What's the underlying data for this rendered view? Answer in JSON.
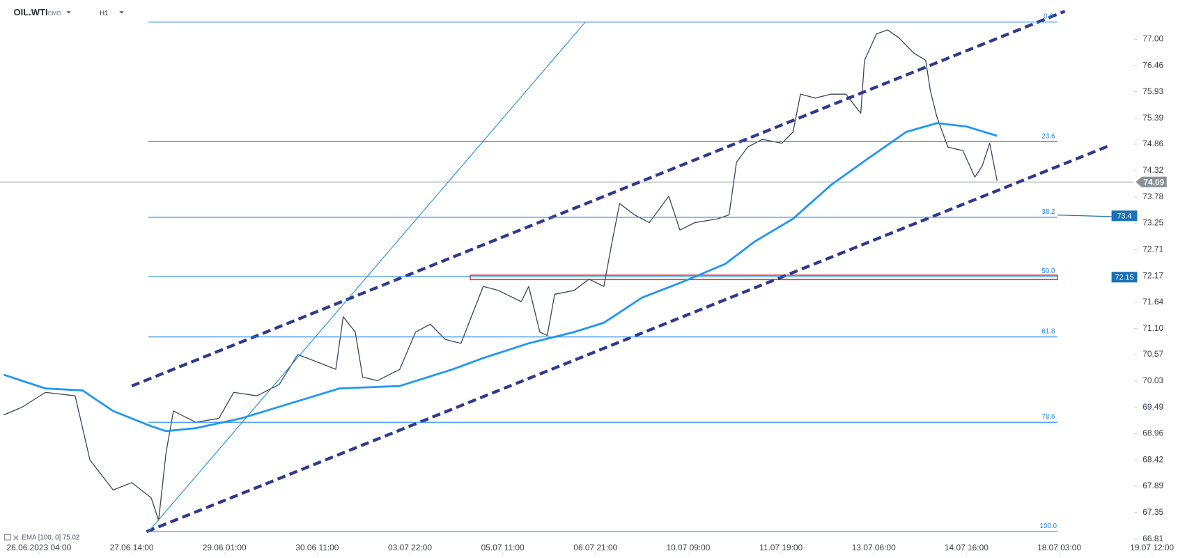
{
  "chart_data": {
    "type": "line",
    "symbol": "OIL.WTI",
    "market": "CMD",
    "timeframe": "H1",
    "indicator_label": "EMA [100, 0] 75.02",
    "xlim": [
      -0.42,
      12.28
    ],
    "ylim": [
      66.5,
      77.8
    ],
    "xticks": [
      {
        "value": 0,
        "label": "26.06.2023 04:00"
      },
      {
        "value": 1,
        "label": "27.06 14:00"
      },
      {
        "value": 2,
        "label": "29.06 01:00"
      },
      {
        "value": 3,
        "label": "30.06 11:00"
      },
      {
        "value": 4,
        "label": "03.07 22:00"
      },
      {
        "value": 5,
        "label": "05.07 11:00"
      },
      {
        "value": 6,
        "label": "06.07 21:00"
      },
      {
        "value": 7,
        "label": "10.07 09:00"
      },
      {
        "value": 8,
        "label": "11.07 19:00"
      },
      {
        "value": 9,
        "label": "13.07 06:00"
      },
      {
        "value": 10,
        "label": "14.07 16:00"
      },
      {
        "value": 11,
        "label": "18.07 03:00"
      },
      {
        "value": 12,
        "label": "19.07 12:00"
      }
    ],
    "yticks": [
      {
        "value": 77,
        "label": "77.00"
      },
      76.46,
      75.93,
      75.39,
      74.86,
      74.32,
      73.78,
      73.25,
      72.71,
      72.17,
      71.64,
      {
        "value": 71.1,
        "label": "71.10"
      },
      70.57,
      70.03,
      69.49,
      68.96,
      68.42,
      67.89,
      67.35,
      66.81
    ],
    "series": [
      {
        "name": "OIL.WTI",
        "color": "#3b4654",
        "x": [
          -0.38,
          -0.18,
          0.07,
          0.39,
          0.55,
          0.8,
          1.0,
          1.21,
          1.29,
          1.37,
          1.45,
          1.69,
          1.94,
          2.1,
          2.35,
          2.59,
          2.79,
          3.0,
          3.2,
          3.28,
          3.41,
          3.49,
          3.65,
          3.89,
          4.06,
          4.22,
          4.38,
          4.55,
          4.63,
          4.79,
          4.95,
          5.2,
          5.28,
          5.4,
          5.48,
          5.56,
          5.77,
          5.93,
          6.09,
          6.18,
          6.26,
          6.42,
          6.58,
          6.79,
          6.91,
          7.07,
          7.32,
          7.44,
          7.52,
          7.64,
          7.8,
          8.01,
          8.13,
          8.21,
          8.37,
          8.54,
          8.7,
          8.86,
          8.9,
          9.03,
          9.15,
          9.27,
          9.43,
          9.56,
          9.61,
          9.68,
          9.8,
          9.96,
          10.09,
          10.17,
          10.25,
          10.33
        ],
        "values": [
          69.34,
          69.5,
          69.8,
          69.73,
          68.42,
          67.81,
          67.96,
          67.65,
          67.19,
          68.57,
          69.42,
          69.19,
          69.27,
          69.8,
          69.73,
          69.96,
          70.57,
          70.42,
          70.27,
          71.34,
          71.03,
          70.11,
          70.04,
          70.27,
          71.03,
          71.19,
          70.88,
          70.8,
          71.19,
          71.96,
          71.88,
          71.65,
          71.96,
          71.03,
          70.96,
          71.8,
          71.88,
          72.11,
          71.96,
          72.88,
          73.65,
          73.42,
          73.26,
          73.8,
          73.11,
          73.26,
          73.34,
          73.42,
          74.49,
          74.8,
          74.96,
          74.88,
          75.11,
          75.88,
          75.8,
          75.88,
          75.88,
          75.49,
          76.57,
          77.11,
          77.19,
          77.03,
          76.72,
          76.57,
          75.95,
          75.42,
          74.8,
          74.73,
          74.19,
          74.42,
          74.88,
          74.11
        ]
      },
      {
        "name": "EMA",
        "color": "#2196f3",
        "x": [
          -0.38,
          0.07,
          0.47,
          0.8,
          1.21,
          1.37,
          1.69,
          2.18,
          2.84,
          3.24,
          3.89,
          4.46,
          4.79,
          5.28,
          5.77,
          6.09,
          6.5,
          6.91,
          7.4,
          7.72,
          8.13,
          8.54,
          8.94,
          9.35,
          9.68,
          10.0,
          10.33
        ],
        "values": [
          70.16,
          69.88,
          69.84,
          69.42,
          69.11,
          69.01,
          69.07,
          69.27,
          69.65,
          69.88,
          69.93,
          70.27,
          70.5,
          70.8,
          71.03,
          71.22,
          71.73,
          72.03,
          72.42,
          72.88,
          73.34,
          74.03,
          74.57,
          75.11,
          75.29,
          75.22,
          75.03
        ]
      }
    ],
    "fibonacci": {
      "color": "#1e88e5",
      "x": [
        1.18,
        10.98
      ],
      "levels": [
        {
          "label": "0.0",
          "price": 77.35
        },
        {
          "label": "23.6",
          "price": 74.91
        },
        {
          "label": "38.2",
          "price": 73.37
        },
        {
          "label": "50.0",
          "price": 72.16
        },
        {
          "label": "61.8",
          "price": 70.93
        },
        {
          "label": "78.6",
          "price": 69.19
        },
        {
          "label": "100.0",
          "price": 66.96
        }
      ]
    },
    "trend_lines": [
      {
        "x": [
          1.0,
          11.06
        ],
        "y": [
          69.93,
          77.57
        ],
        "color": "#2e3a8c",
        "dashed": true
      },
      {
        "x": [
          1.16,
          11.54
        ],
        "y": [
          66.96,
          74.83
        ],
        "color": "#2e3a8c",
        "dashed": true
      },
      {
        "x": [
          1.18,
          5.89
        ],
        "y": [
          66.96,
          77.35
        ],
        "color": "#1e88e5",
        "dashed": false
      }
    ],
    "zone": {
      "x": [
        4.65,
        10.98
      ],
      "y": [
        72.1,
        72.19
      ],
      "color": "#e53935"
    },
    "current_price": {
      "value": 74.09,
      "color": "#8a9096"
    },
    "price_markers": [
      {
        "value": 73.4,
        "x_from": 10.98,
        "color": "#1a73b8"
      },
      {
        "value": 72.15,
        "color": "#1a73b8"
      }
    ]
  }
}
